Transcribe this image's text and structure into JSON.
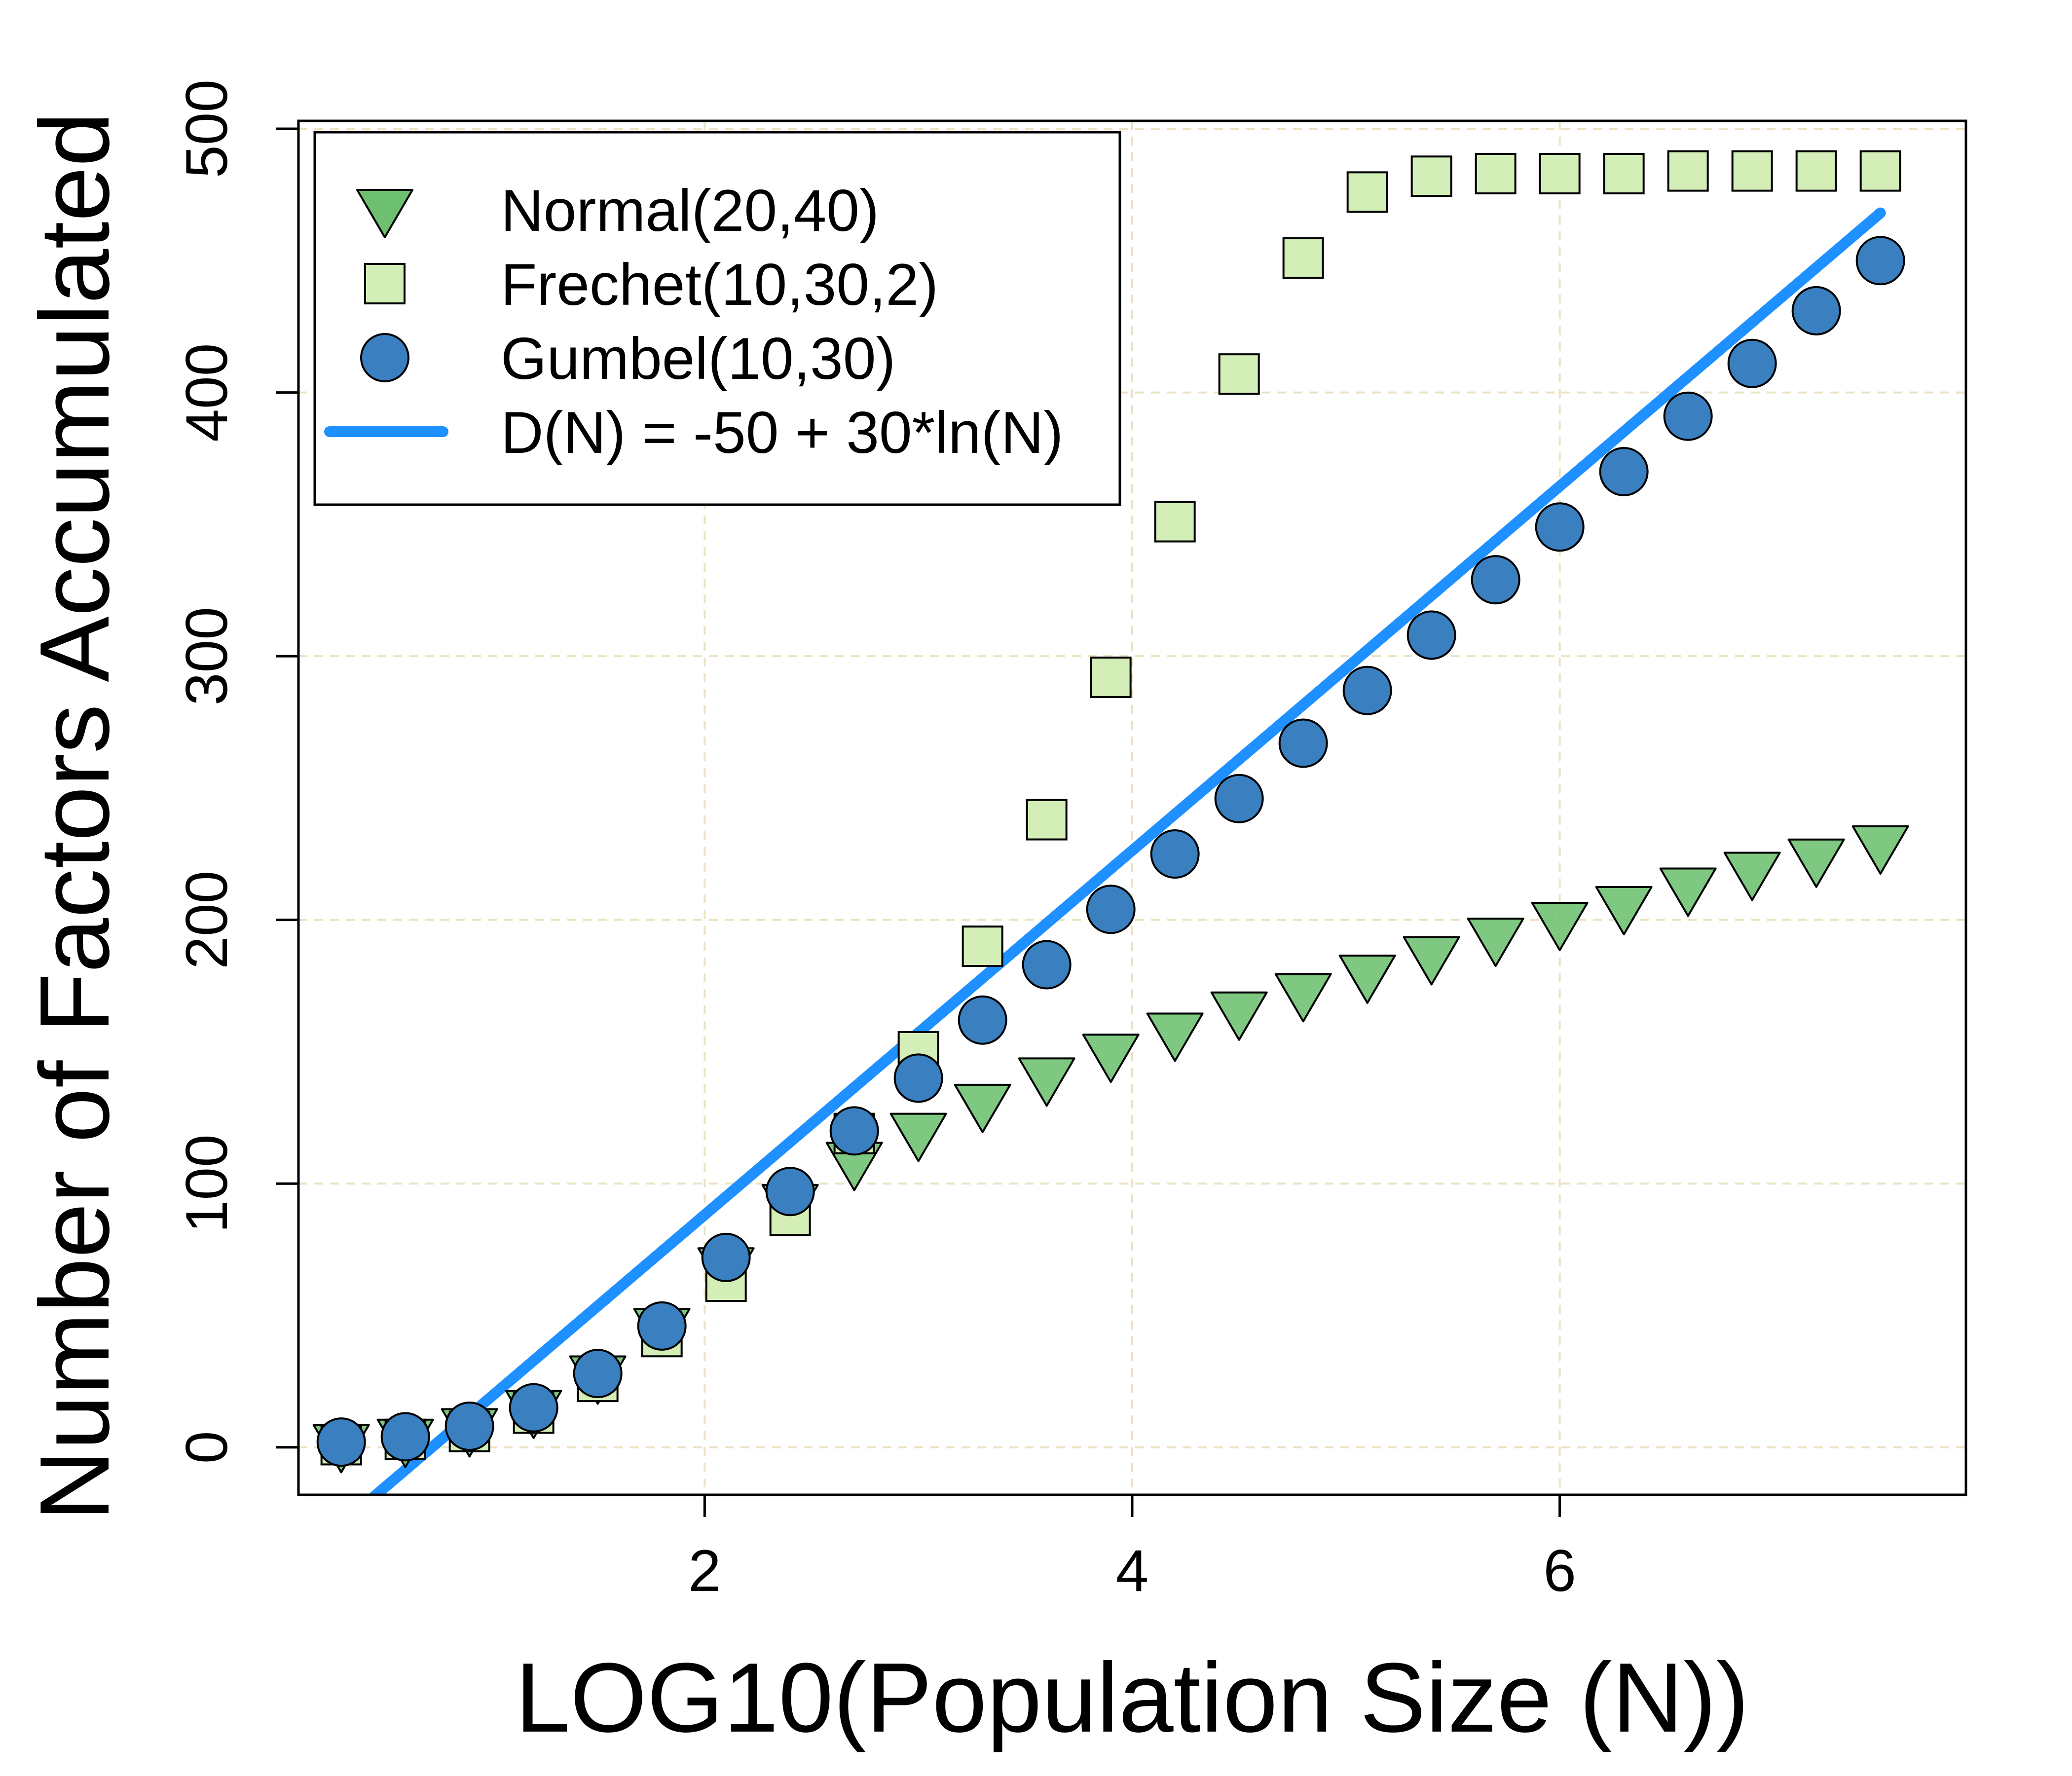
{
  "chart_data": {
    "type": "scatter",
    "xlabel": "LOG10(Population Size (N))",
    "ylabel": "Number of Factors Accumulated",
    "x_ticks": [
      2,
      4,
      6
    ],
    "y_ticks": [
      0,
      100,
      200,
      300,
      400,
      500
    ],
    "xlim": [
      0.1,
      7.9
    ],
    "ylim": [
      -18,
      503
    ],
    "grid": true,
    "legend_position": "top-left",
    "x": [
      0.3,
      0.6,
      0.9,
      1.2,
      1.5,
      1.8,
      2.1,
      2.4,
      2.7,
      3.0,
      3.3,
      3.6,
      3.9,
      4.2,
      4.5,
      4.8,
      5.1,
      5.4,
      5.7,
      6.0,
      6.3,
      6.6,
      6.9,
      7.2,
      7.5
    ],
    "series": [
      {
        "name": "Normal(20,40)",
        "marker": "triangle-down",
        "color": "#6cc070",
        "values": [
          1,
          3,
          7,
          14,
          27,
          45,
          68,
          92,
          108,
          119,
          130,
          140,
          149,
          157,
          165,
          172,
          179,
          186,
          193,
          199,
          205,
          212,
          218,
          223,
          228
        ]
      },
      {
        "name": "Frechet(10,30,2)",
        "marker": "square",
        "color": "#d4eeb8",
        "values": [
          1,
          3,
          6,
          13,
          25,
          42,
          63,
          88,
          119,
          150,
          190,
          238,
          292,
          351,
          407,
          451,
          476,
          482,
          483,
          483,
          483,
          484,
          484,
          484,
          484
        ]
      },
      {
        "name": "Gumbel(10,30)",
        "marker": "circle",
        "color": "#3a7fbf",
        "values": [
          2,
          4,
          8,
          15,
          28,
          46,
          72,
          97,
          120,
          140,
          162,
          183,
          204,
          225,
          246,
          267,
          287,
          308,
          329,
          349,
          370,
          391,
          411,
          431,
          450
        ]
      }
    ],
    "lines": [
      {
        "name": "D(N) = -50 + 30*ln(N)",
        "color": "#1e90ff",
        "intercept": -50,
        "coefficient": 30
      }
    ]
  }
}
